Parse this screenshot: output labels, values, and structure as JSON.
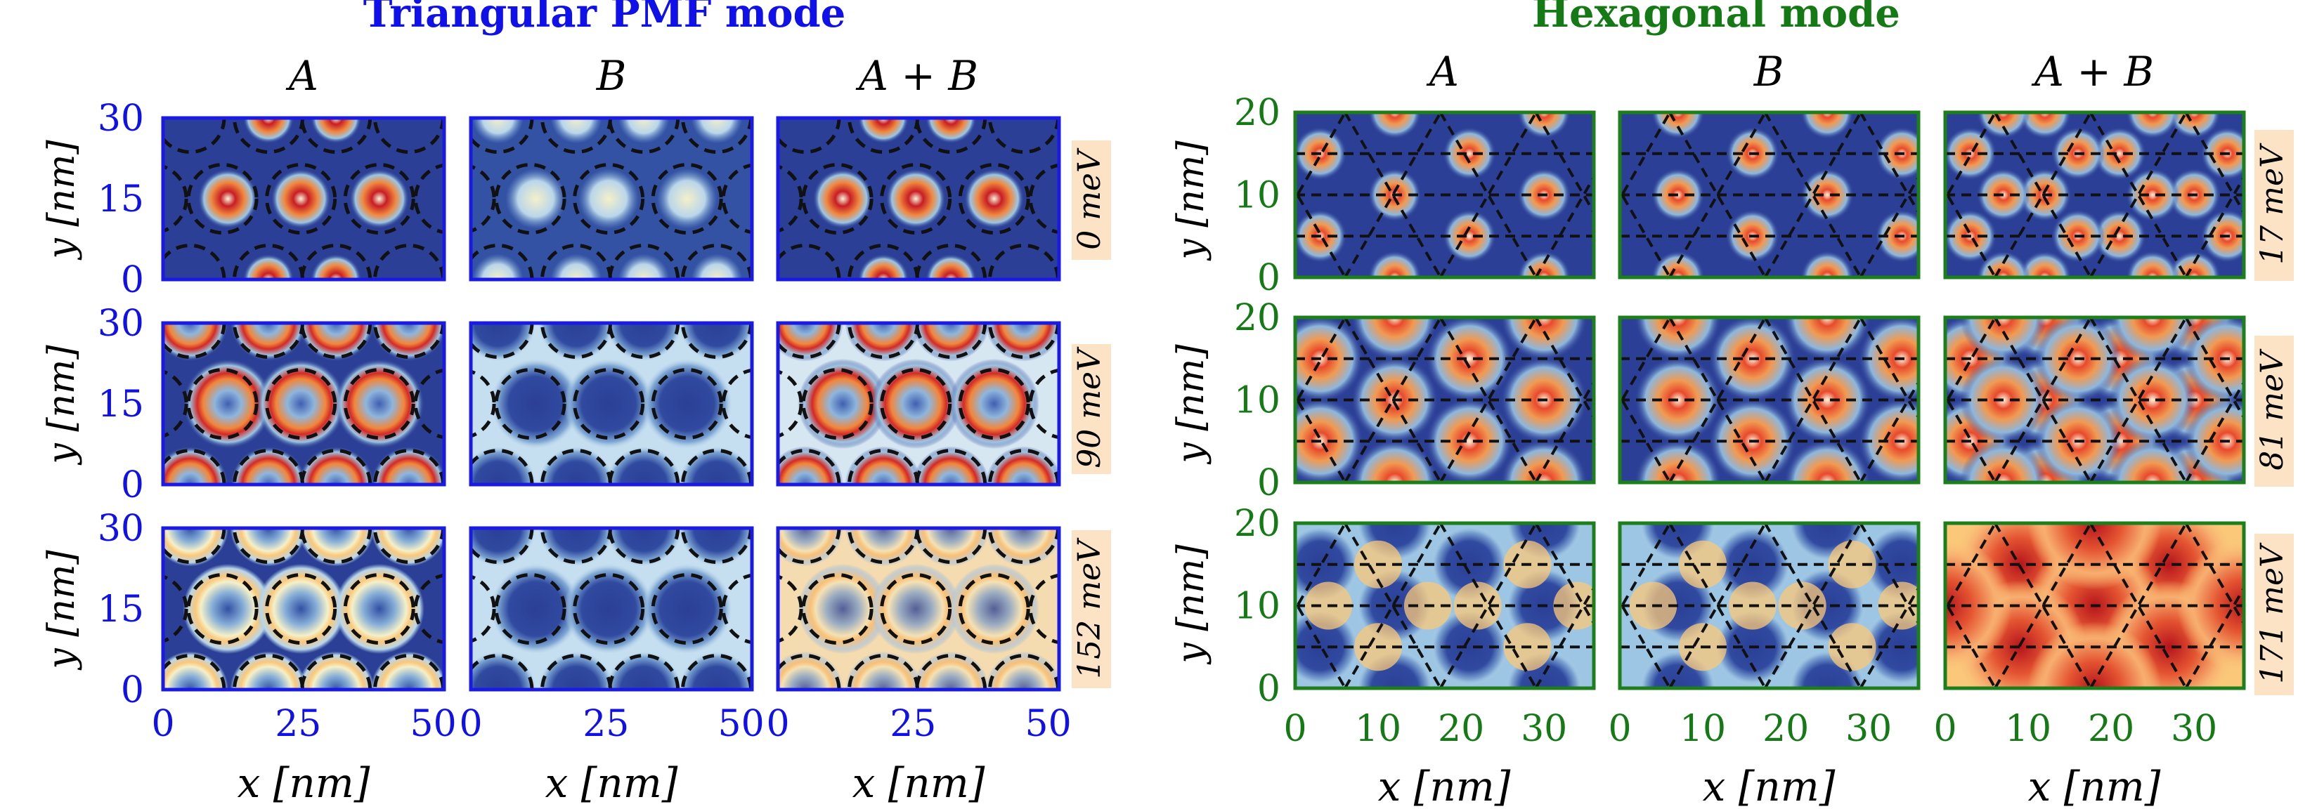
{
  "figure": {
    "left": {
      "title": "Triangular PMF mode",
      "title_color": "#1010e8",
      "frame_color": "#1a1ae6",
      "columns": [
        "A",
        "B",
        "A + B"
      ],
      "row_energies": [
        "0 meV",
        "90 meV",
        "152 meV"
      ],
      "energy_label_bg": "#fde3c6",
      "x_axis": {
        "label": "x [nm]",
        "range": [
          0,
          52
        ],
        "ticks": [
          "0",
          "25",
          "50"
        ]
      },
      "y_axis": {
        "label": "y [nm]",
        "range": [
          0,
          30
        ],
        "ticks": [
          "0",
          "15",
          "30"
        ]
      }
    },
    "right": {
      "title": "Hexagonal mode",
      "title_color": "#157a15",
      "frame_color": "#1c7f1c",
      "columns": [
        "A",
        "B",
        "A + B"
      ],
      "row_energies": [
        "17 meV",
        "81 meV",
        "171 meV"
      ],
      "energy_label_bg": "#fde3c6",
      "x_axis": {
        "label": "x [nm]",
        "range": [
          0,
          36
        ],
        "ticks": [
          "0",
          "10",
          "20",
          "30"
        ]
      },
      "y_axis": {
        "label": "y [nm]",
        "range": [
          0,
          20
        ],
        "ticks": [
          "0",
          "10",
          "20"
        ]
      }
    },
    "colormap": [
      "#2b3f96",
      "#4a79c0",
      "#9cc6e3",
      "#f3f4d6",
      "#fbc87a",
      "#ef6a3a",
      "#c81d24"
    ],
    "units": {
      "length": "nm",
      "energy": "meV"
    }
  }
}
